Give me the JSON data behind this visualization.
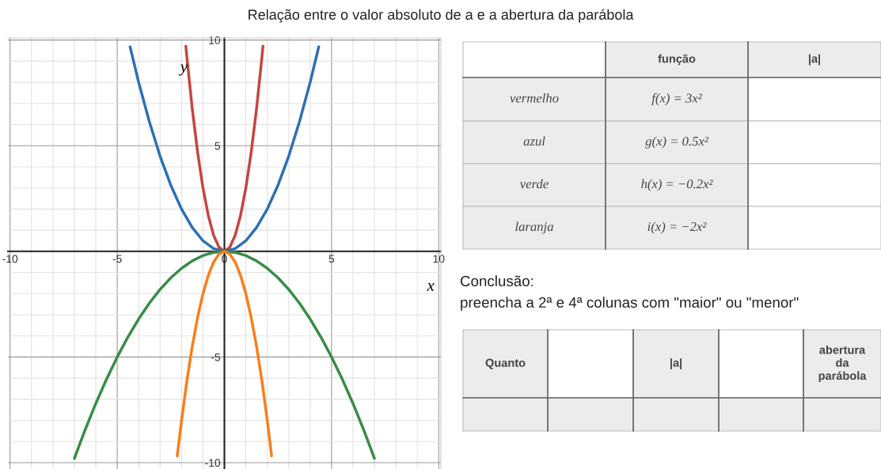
{
  "chart_data": {
    "type": "line",
    "title": "Relação entre o valor absoluto de a e a abertura da parábola",
    "xlabel": "x",
    "ylabel": "y",
    "xlim": [
      -10.1,
      10.1
    ],
    "ylim": [
      -10.3,
      10.1
    ],
    "xticks": [
      -10,
      {
        "value": -9,
        "label": null
      },
      {
        "value": -8,
        "label": null
      },
      {
        "value": -7,
        "label": null
      },
      {
        "value": -6,
        "label": null
      },
      -5,
      {
        "value": -4,
        "label": null
      },
      {
        "value": -3,
        "label": null
      },
      {
        "value": -2,
        "label": null
      },
      {
        "value": -1,
        "label": null
      },
      0,
      {
        "value": 1,
        "label": null
      },
      {
        "value": 2,
        "label": null
      },
      {
        "value": 3,
        "label": null
      },
      {
        "value": 4,
        "label": null
      },
      5,
      {
        "value": 6,
        "label": null
      },
      {
        "value": 7,
        "label": null
      },
      {
        "value": 8,
        "label": null
      },
      {
        "value": 9,
        "label": null
      },
      10
    ],
    "yticks": [
      -10,
      {
        "value": -9,
        "label": null
      },
      {
        "value": -8,
        "label": null
      },
      {
        "value": -7,
        "label": null
      },
      {
        "value": -6,
        "label": null
      },
      -5,
      {
        "value": -4,
        "label": null
      },
      {
        "value": -3,
        "label": null
      },
      {
        "value": -2,
        "label": null
      },
      {
        "value": -1,
        "label": null
      },
      {
        "value": 0,
        "label": null
      },
      {
        "value": 1,
        "label": null
      },
      {
        "value": 2,
        "label": null
      },
      {
        "value": 3,
        "label": null
      },
      {
        "value": 4,
        "label": null
      },
      5,
      {
        "value": 6,
        "label": null
      },
      {
        "value": 7,
        "label": null
      },
      {
        "value": 8,
        "label": null
      },
      {
        "value": 9,
        "label": null
      },
      10
    ],
    "grid": true,
    "legend": false,
    "marker": "none",
    "line_style": "solid",
    "series": [
      {
        "color": "#c74440",
        "x": [
          -1.8,
          -1.75,
          -1.5,
          -1.25,
          -1,
          -0.75,
          -0.5,
          -0.25,
          0,
          0.25,
          0.5,
          0.75,
          1,
          1.25,
          1.5,
          1.75,
          1.8
        ],
        "values": [
          9.72,
          9.19,
          6.75,
          4.69,
          3,
          1.69,
          0.75,
          0.19,
          0,
          0.19,
          0.75,
          1.69,
          3,
          4.69,
          6.75,
          9.19,
          9.72
        ]
      },
      {
        "color": "#2d70b3",
        "x": [
          -4.4,
          -4,
          -3.5,
          -3,
          -2.5,
          -2,
          -1.5,
          -1,
          -0.5,
          0,
          0.5,
          1,
          1.5,
          2,
          2.5,
          3,
          3.5,
          4,
          4.4
        ],
        "values": [
          9.68,
          8,
          6.13,
          4.5,
          3.13,
          2,
          1.13,
          0.5,
          0.13,
          0,
          0.13,
          0.5,
          1.13,
          2,
          3.13,
          4.5,
          6.13,
          8,
          9.68
        ]
      },
      {
        "color": "#388c46",
        "x": [
          -7,
          -6.5,
          -6,
          -5.5,
          -5,
          -4.5,
          -4,
          -3.5,
          -3,
          -2.5,
          -2,
          -1.5,
          -1,
          -0.5,
          0,
          0.5,
          1,
          1.5,
          2,
          2.5,
          3,
          3.5,
          4,
          4.5,
          5,
          5.5,
          6,
          6.5,
          7
        ],
        "values": [
          -9.8,
          -8.45,
          -7.2,
          -6.05,
          -5,
          -4.05,
          -3.2,
          -2.45,
          -1.8,
          -1.25,
          -0.8,
          -0.45,
          -0.2,
          -0.05,
          0,
          -0.05,
          -0.2,
          -0.45,
          -0.8,
          -1.25,
          -1.8,
          -2.45,
          -3.2,
          -4.05,
          -5,
          -6.05,
          -7.2,
          -8.45,
          -9.8
        ]
      },
      {
        "color": "#fa7e19",
        "x": [
          -2.2,
          -2,
          -1.75,
          -1.5,
          -1.25,
          -1,
          -0.75,
          -0.5,
          -0.25,
          0,
          0.25,
          0.5,
          0.75,
          1,
          1.25,
          1.5,
          1.75,
          2,
          2.2
        ],
        "values": [
          -9.68,
          -8,
          -6.13,
          -4.5,
          -3.13,
          -2,
          -1.13,
          -0.5,
          -0.13,
          0,
          -0.13,
          -0.5,
          -1.13,
          -2,
          -3.13,
          -4.5,
          -6.13,
          -8,
          -9.68
        ]
      }
    ],
    "annotations": [
      "função",
      "|a|",
      "vermelho",
      "f(x) = 3x²",
      "azul",
      "g(x) = 0.5x²",
      "verde",
      "h(x) = −0.2x²",
      "laranja",
      "i(x) = −2x²",
      "Conclusão:",
      "preencha a 2ª e 4ª colunas com \"maior\" ou \"menor\"",
      "Quanto",
      "|a|",
      "abertura\nda\nparábola"
    ]
  }
}
